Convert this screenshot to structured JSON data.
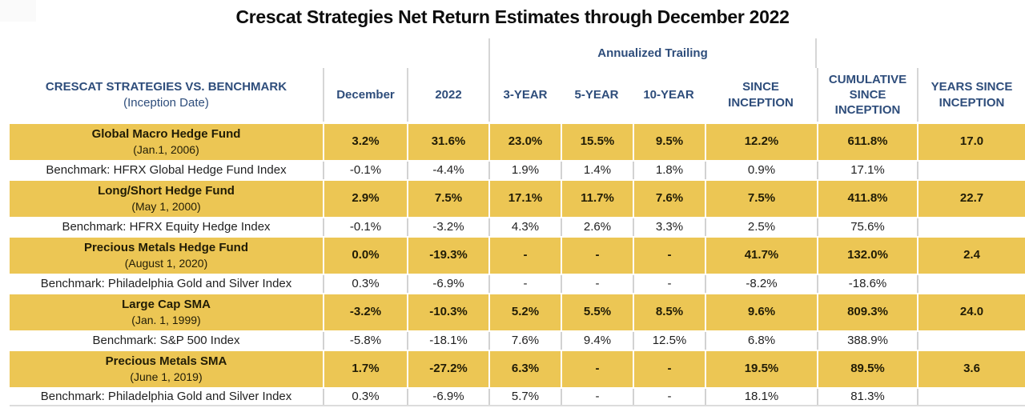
{
  "title": "Crescat Strategies Net Return Estimates through December 2022",
  "colors": {
    "gold": "#ecc654",
    "navy": "#2e4d7b",
    "separator_gray": "#d2d2d2",
    "title_black": "#0d0d0d"
  },
  "table": {
    "group_header": "Annualized Trailing",
    "columns": [
      {
        "label": "CRESCAT STRATEGIES VS. BENCHMARK",
        "sublabel": "(Inception Date)"
      },
      {
        "label": "December"
      },
      {
        "label": "2022"
      },
      {
        "label": "3-YEAR"
      },
      {
        "label": "5-YEAR"
      },
      {
        "label": "10-YEAR"
      },
      {
        "label": "SINCE INCEPTION"
      },
      {
        "label": "CUMULATIVE SINCE INCEPTION"
      },
      {
        "label": "YEARS SINCE INCEPTION"
      }
    ],
    "rows": [
      {
        "type": "strategy",
        "name": "Global Macro Hedge Fund",
        "inception": "(Jan.1, 2006)",
        "values": [
          "3.2%",
          "31.6%",
          "23.0%",
          "15.5%",
          "9.5%",
          "12.2%",
          "611.8%",
          "17.0"
        ]
      },
      {
        "type": "benchmark",
        "name": "Benchmark: HFRX Global Hedge Fund Index",
        "values": [
          "-0.1%",
          "-4.4%",
          "1.9%",
          "1.4%",
          "1.8%",
          "0.9%",
          "17.1%",
          ""
        ]
      },
      {
        "type": "strategy",
        "name": "Long/Short Hedge Fund",
        "inception": "(May 1, 2000)",
        "values": [
          "2.9%",
          "7.5%",
          "17.1%",
          "11.7%",
          "7.6%",
          "7.5%",
          "411.8%",
          "22.7"
        ]
      },
      {
        "type": "benchmark",
        "name": "Benchmark: HFRX Equity Hedge Index",
        "values": [
          "-0.1%",
          "-3.2%",
          "4.3%",
          "2.6%",
          "3.3%",
          "2.5%",
          "75.6%",
          ""
        ]
      },
      {
        "type": "strategy",
        "name": "Precious Metals Hedge Fund",
        "inception": "(August 1, 2020)",
        "values": [
          "0.0%",
          "-19.3%",
          "-",
          "-",
          "-",
          "41.7%",
          "132.0%",
          "2.4"
        ]
      },
      {
        "type": "benchmark",
        "name": "Benchmark: Philadelphia Gold and Silver Index",
        "values": [
          "0.3%",
          "-6.9%",
          "-",
          "-",
          "-",
          "-8.2%",
          "-18.6%",
          ""
        ]
      },
      {
        "type": "strategy",
        "name": "Large Cap SMA",
        "inception": "(Jan. 1, 1999)",
        "values": [
          "-3.2%",
          "-10.3%",
          "5.2%",
          "5.5%",
          "8.5%",
          "9.6%",
          "809.3%",
          "24.0"
        ]
      },
      {
        "type": "benchmark",
        "name": "Benchmark: S&P 500 Index",
        "values": [
          "-5.8%",
          "-18.1%",
          "7.6%",
          "9.4%",
          "12.5%",
          "6.8%",
          "388.9%",
          ""
        ]
      },
      {
        "type": "strategy",
        "name": "Precious Metals SMA",
        "inception": "(June 1, 2019)",
        "values": [
          "1.7%",
          "-27.2%",
          "6.3%",
          "-",
          "-",
          "19.5%",
          "89.5%",
          "3.6"
        ]
      },
      {
        "type": "benchmark",
        "name": "Benchmark: Philadelphia Gold and Silver Index",
        "values": [
          "0.3%",
          "-6.9%",
          "5.7%",
          "-",
          "-",
          "18.1%",
          "81.3%",
          ""
        ]
      }
    ]
  },
  "chart_data": {
    "type": "table",
    "title": "Crescat Strategies Net Return Estimates through December 2022",
    "group_header": {
      "label": "Annualized Trailing",
      "spans_columns": [
        "3-YEAR",
        "5-YEAR",
        "10-YEAR",
        "SINCE INCEPTION"
      ]
    },
    "columns": [
      "CRESCAT STRATEGIES VS. BENCHMARK (Inception Date)",
      "December",
      "2022",
      "3-YEAR",
      "5-YEAR",
      "10-YEAR",
      "SINCE INCEPTION",
      "CUMULATIVE SINCE INCEPTION",
      "YEARS SINCE INCEPTION"
    ],
    "rows": [
      [
        "Global Macro Hedge Fund (Jan.1, 2006)",
        "3.2%",
        "31.6%",
        "23.0%",
        "15.5%",
        "9.5%",
        "12.2%",
        "611.8%",
        "17.0"
      ],
      [
        "Benchmark: HFRX Global Hedge Fund Index",
        "-0.1%",
        "-4.4%",
        "1.9%",
        "1.4%",
        "1.8%",
        "0.9%",
        "17.1%",
        ""
      ],
      [
        "Long/Short Hedge Fund (May 1, 2000)",
        "2.9%",
        "7.5%",
        "17.1%",
        "11.7%",
        "7.6%",
        "7.5%",
        "411.8%",
        "22.7"
      ],
      [
        "Benchmark: HFRX Equity Hedge Index",
        "-0.1%",
        "-3.2%",
        "4.3%",
        "2.6%",
        "3.3%",
        "2.5%",
        "75.6%",
        ""
      ],
      [
        "Precious Metals Hedge Fund (August 1, 2020)",
        "0.0%",
        "-19.3%",
        "-",
        "-",
        "-",
        "41.7%",
        "132.0%",
        "2.4"
      ],
      [
        "Benchmark: Philadelphia Gold and Silver Index",
        "0.3%",
        "-6.9%",
        "-",
        "-",
        "-",
        "-8.2%",
        "-18.6%",
        ""
      ],
      [
        "Large Cap SMA (Jan. 1, 1999)",
        "-3.2%",
        "-10.3%",
        "5.2%",
        "5.5%",
        "8.5%",
        "9.6%",
        "809.3%",
        "24.0"
      ],
      [
        "Benchmark: S&P 500 Index",
        "-5.8%",
        "-18.1%",
        "7.6%",
        "9.4%",
        "12.5%",
        "6.8%",
        "388.9%",
        ""
      ],
      [
        "Precious Metals SMA (June 1, 2019)",
        "1.7%",
        "-27.2%",
        "6.3%",
        "-",
        "-",
        "19.5%",
        "89.5%",
        "3.6"
      ],
      [
        "Benchmark: Philadelphia Gold and Silver Index",
        "0.3%",
        "-6.9%",
        "5.7%",
        "-",
        "-",
        "18.1%",
        "81.3%",
        ""
      ]
    ],
    "legend_position": "none",
    "grid": "column separators only; gold highlight rows for Crescat strategies, white rows for benchmarks"
  }
}
